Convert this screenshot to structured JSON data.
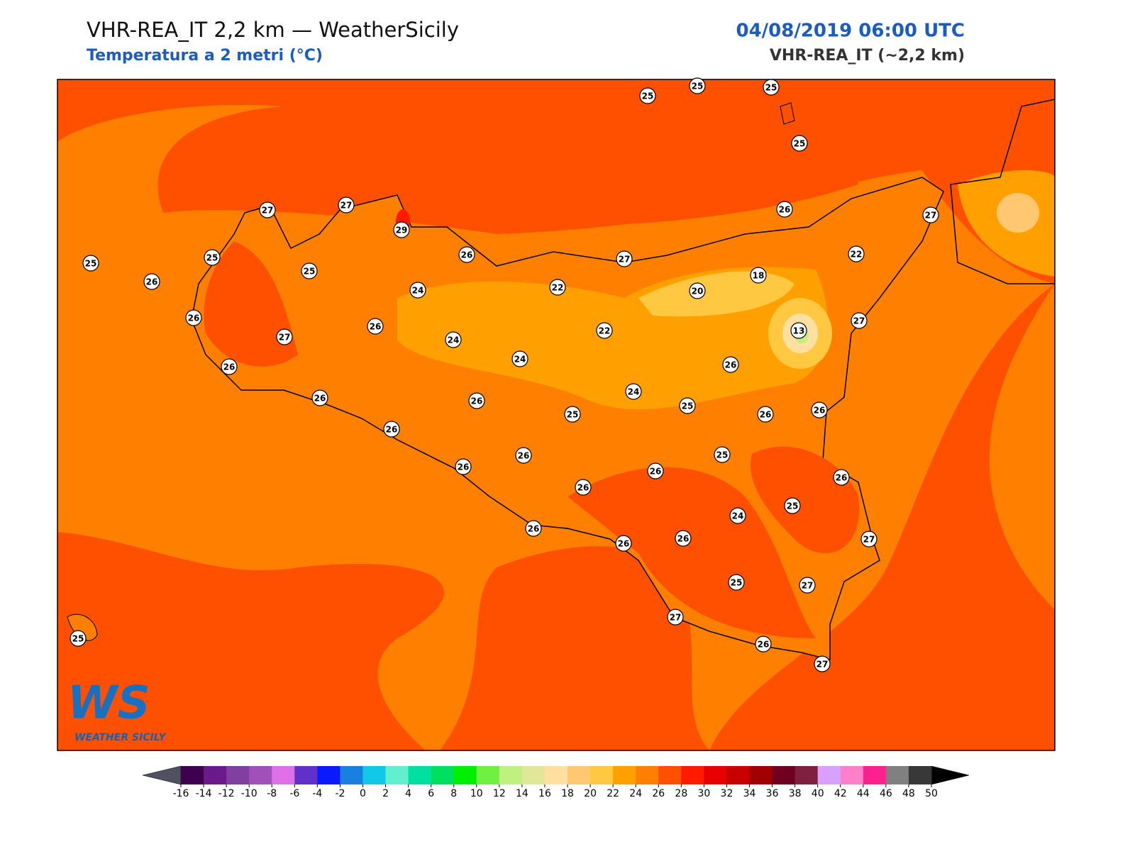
{
  "header": {
    "title": "VHR-REA_IT 2,2 km — WeatherSicily",
    "subtitle": "Temperatura a 2 metri (°C)",
    "datetime": "04/08/2019 06:00 UTC",
    "model": "VHR-REA_IT (~2,2 km)"
  },
  "map": {
    "stations": [
      25,
      25,
      25,
      25,
      25,
      26,
      25,
      27,
      27,
      29,
      25,
      26,
      24,
      22,
      27,
      26,
      27,
      22,
      18,
      20,
      22,
      13,
      27,
      26,
      27,
      26,
      24,
      24,
      26,
      26,
      24,
      26,
      26,
      25,
      25,
      26,
      26,
      26,
      25,
      26,
      26,
      26,
      26,
      26,
      25,
      24,
      26,
      26,
      26,
      27,
      25,
      27,
      27,
      25,
      26,
      27
    ]
  },
  "logo": {
    "mark": "WS",
    "text": "WEATHER SICILY"
  },
  "colorbar": {
    "ticks": [
      -16,
      -14,
      -12,
      -10,
      -8,
      -6,
      -4,
      -2,
      0,
      2,
      4,
      6,
      8,
      10,
      12,
      14,
      16,
      18,
      20,
      22,
      24,
      26,
      28,
      30,
      32,
      34,
      36,
      38,
      40,
      42,
      44,
      46,
      48,
      50
    ],
    "colors": [
      "#400050",
      "#6a1a8a",
      "#8040a0",
      "#a050b8",
      "#e070e8",
      "#6030c8",
      "#0a1aff",
      "#1a80e0",
      "#10c8e8",
      "#60f0d0",
      "#00e0a0",
      "#00e060",
      "#00f000",
      "#70f040",
      "#c0f080",
      "#e0e898",
      "#ffe0a0",
      "#ffc870",
      "#ffc840",
      "#ffa000",
      "#ff8000",
      "#ff5000",
      "#ff1a00",
      "#e80000",
      "#c80000",
      "#a00000",
      "#700020",
      "#802040",
      "#d8a0ff",
      "#ff80c8",
      "#ff2090",
      "#808080",
      "#383838"
    ],
    "under_color": "#505060",
    "over_color": "#000000"
  }
}
